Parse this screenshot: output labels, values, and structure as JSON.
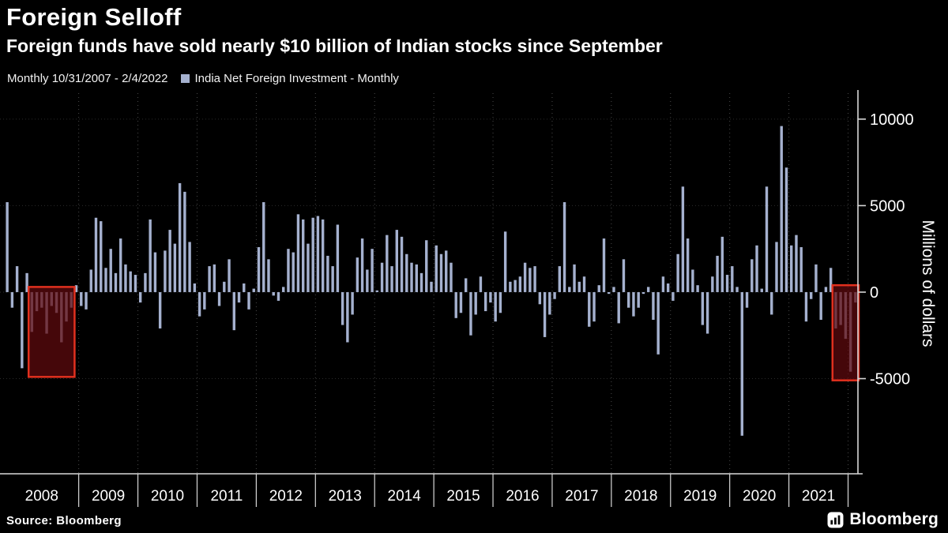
{
  "header": {
    "title": "Foreign Selloff",
    "subtitle": "Foreign funds have sold nearly $10 billion of Indian stocks since September",
    "period_label": "Monthly 10/31/2007 - 2/4/2022",
    "legend_label": "India Net Foreign Investment - Monthly"
  },
  "footer": {
    "source": "Source:  Bloomberg",
    "logo": "Bloomberg"
  },
  "colors": {
    "background": "#000000",
    "bar": "#a5b1cf",
    "axis": "#d8d8d8",
    "grid_vertical": "#4a4a4a",
    "grid_horizontal": "#2b2b2b",
    "text": "#ffffff",
    "highlight_border": "#e0301e",
    "highlight_fill": "rgba(96,10,14,0.72)"
  },
  "chart_data": {
    "type": "bar",
    "title": "Foreign Selloff",
    "subtitle": "Foreign funds have sold nearly $10 billion of Indian stocks since September",
    "series_name": "India Net Foreign Investment - Monthly",
    "frequency": "monthly",
    "x_start": "2007-10",
    "x_end": "2022-02",
    "ylabel": "Millions of dollars",
    "ylim": [
      -10500,
      11500
    ],
    "y_ticks": [
      10000,
      5000,
      0,
      -5000
    ],
    "year_labels": [
      "2008",
      "2009",
      "2010",
      "2011",
      "2012",
      "2013",
      "2014",
      "2015",
      "2016",
      "2017",
      "2018",
      "2019",
      "2020",
      "2021"
    ],
    "values": [
      5200,
      -900,
      1500,
      -4400,
      1100,
      -2300,
      -1100,
      -900,
      -2400,
      -800,
      -1200,
      -2900,
      -1700,
      -900,
      400,
      -800,
      -1000,
      1300,
      4300,
      4100,
      1400,
      2500,
      1100,
      3100,
      1600,
      1200,
      1000,
      -600,
      1100,
      4200,
      2300,
      -2100,
      2400,
      3600,
      2800,
      6300,
      5800,
      2900,
      500,
      -1400,
      -1000,
      1500,
      1600,
      -800,
      600,
      1900,
      -2200,
      -600,
      500,
      -1000,
      200,
      2600,
      5200,
      1900,
      -200,
      -500,
      300,
      2500,
      2300,
      4500,
      4200,
      2800,
      4300,
      4400,
      4200,
      2100,
      1500,
      3900,
      -1900,
      -2900,
      -1300,
      2000,
      3100,
      1300,
      2500,
      100,
      1700,
      3300,
      1500,
      3600,
      3200,
      2200,
      1700,
      1600,
      1100,
      3000,
      600,
      2700,
      2200,
      2400,
      1700,
      -1500,
      -1200,
      800,
      -2500,
      -1300,
      900,
      -1100,
      -600,
      -1700,
      -1200,
      3500,
      600,
      700,
      900,
      1700,
      1400,
      1500,
      -700,
      -2600,
      -1300,
      -400,
      1500,
      5200,
      300,
      1600,
      600,
      900,
      -2000,
      -1700,
      400,
      3100,
      -100,
      300,
      -1800,
      1900,
      -900,
      -1400,
      -900,
      -100,
      300,
      -1600,
      -3600,
      900,
      500,
      -500,
      2200,
      6100,
      3100,
      1300,
      400,
      -1900,
      -2400,
      900,
      2100,
      3200,
      1000,
      1500,
      300,
      -8300,
      -900,
      1900,
      2700,
      200,
      6100,
      -1300,
      2900,
      9600,
      7200,
      2700,
      3300,
      2600,
      -1700,
      -400,
      1600,
      -1600,
      300,
      1400,
      -2100,
      -1900,
      -2700,
      -4600,
      -600
    ],
    "highlights": [
      {
        "from": "2008-03",
        "to": "2008-11",
        "from_index": 5,
        "to_index": 13,
        "value_top": 300,
        "value_bottom": -4900
      },
      {
        "from": "2021-10",
        "to": "2022-02",
        "from_index": 168,
        "to_index": 172,
        "value_top": 400,
        "value_bottom": -5100
      }
    ]
  }
}
